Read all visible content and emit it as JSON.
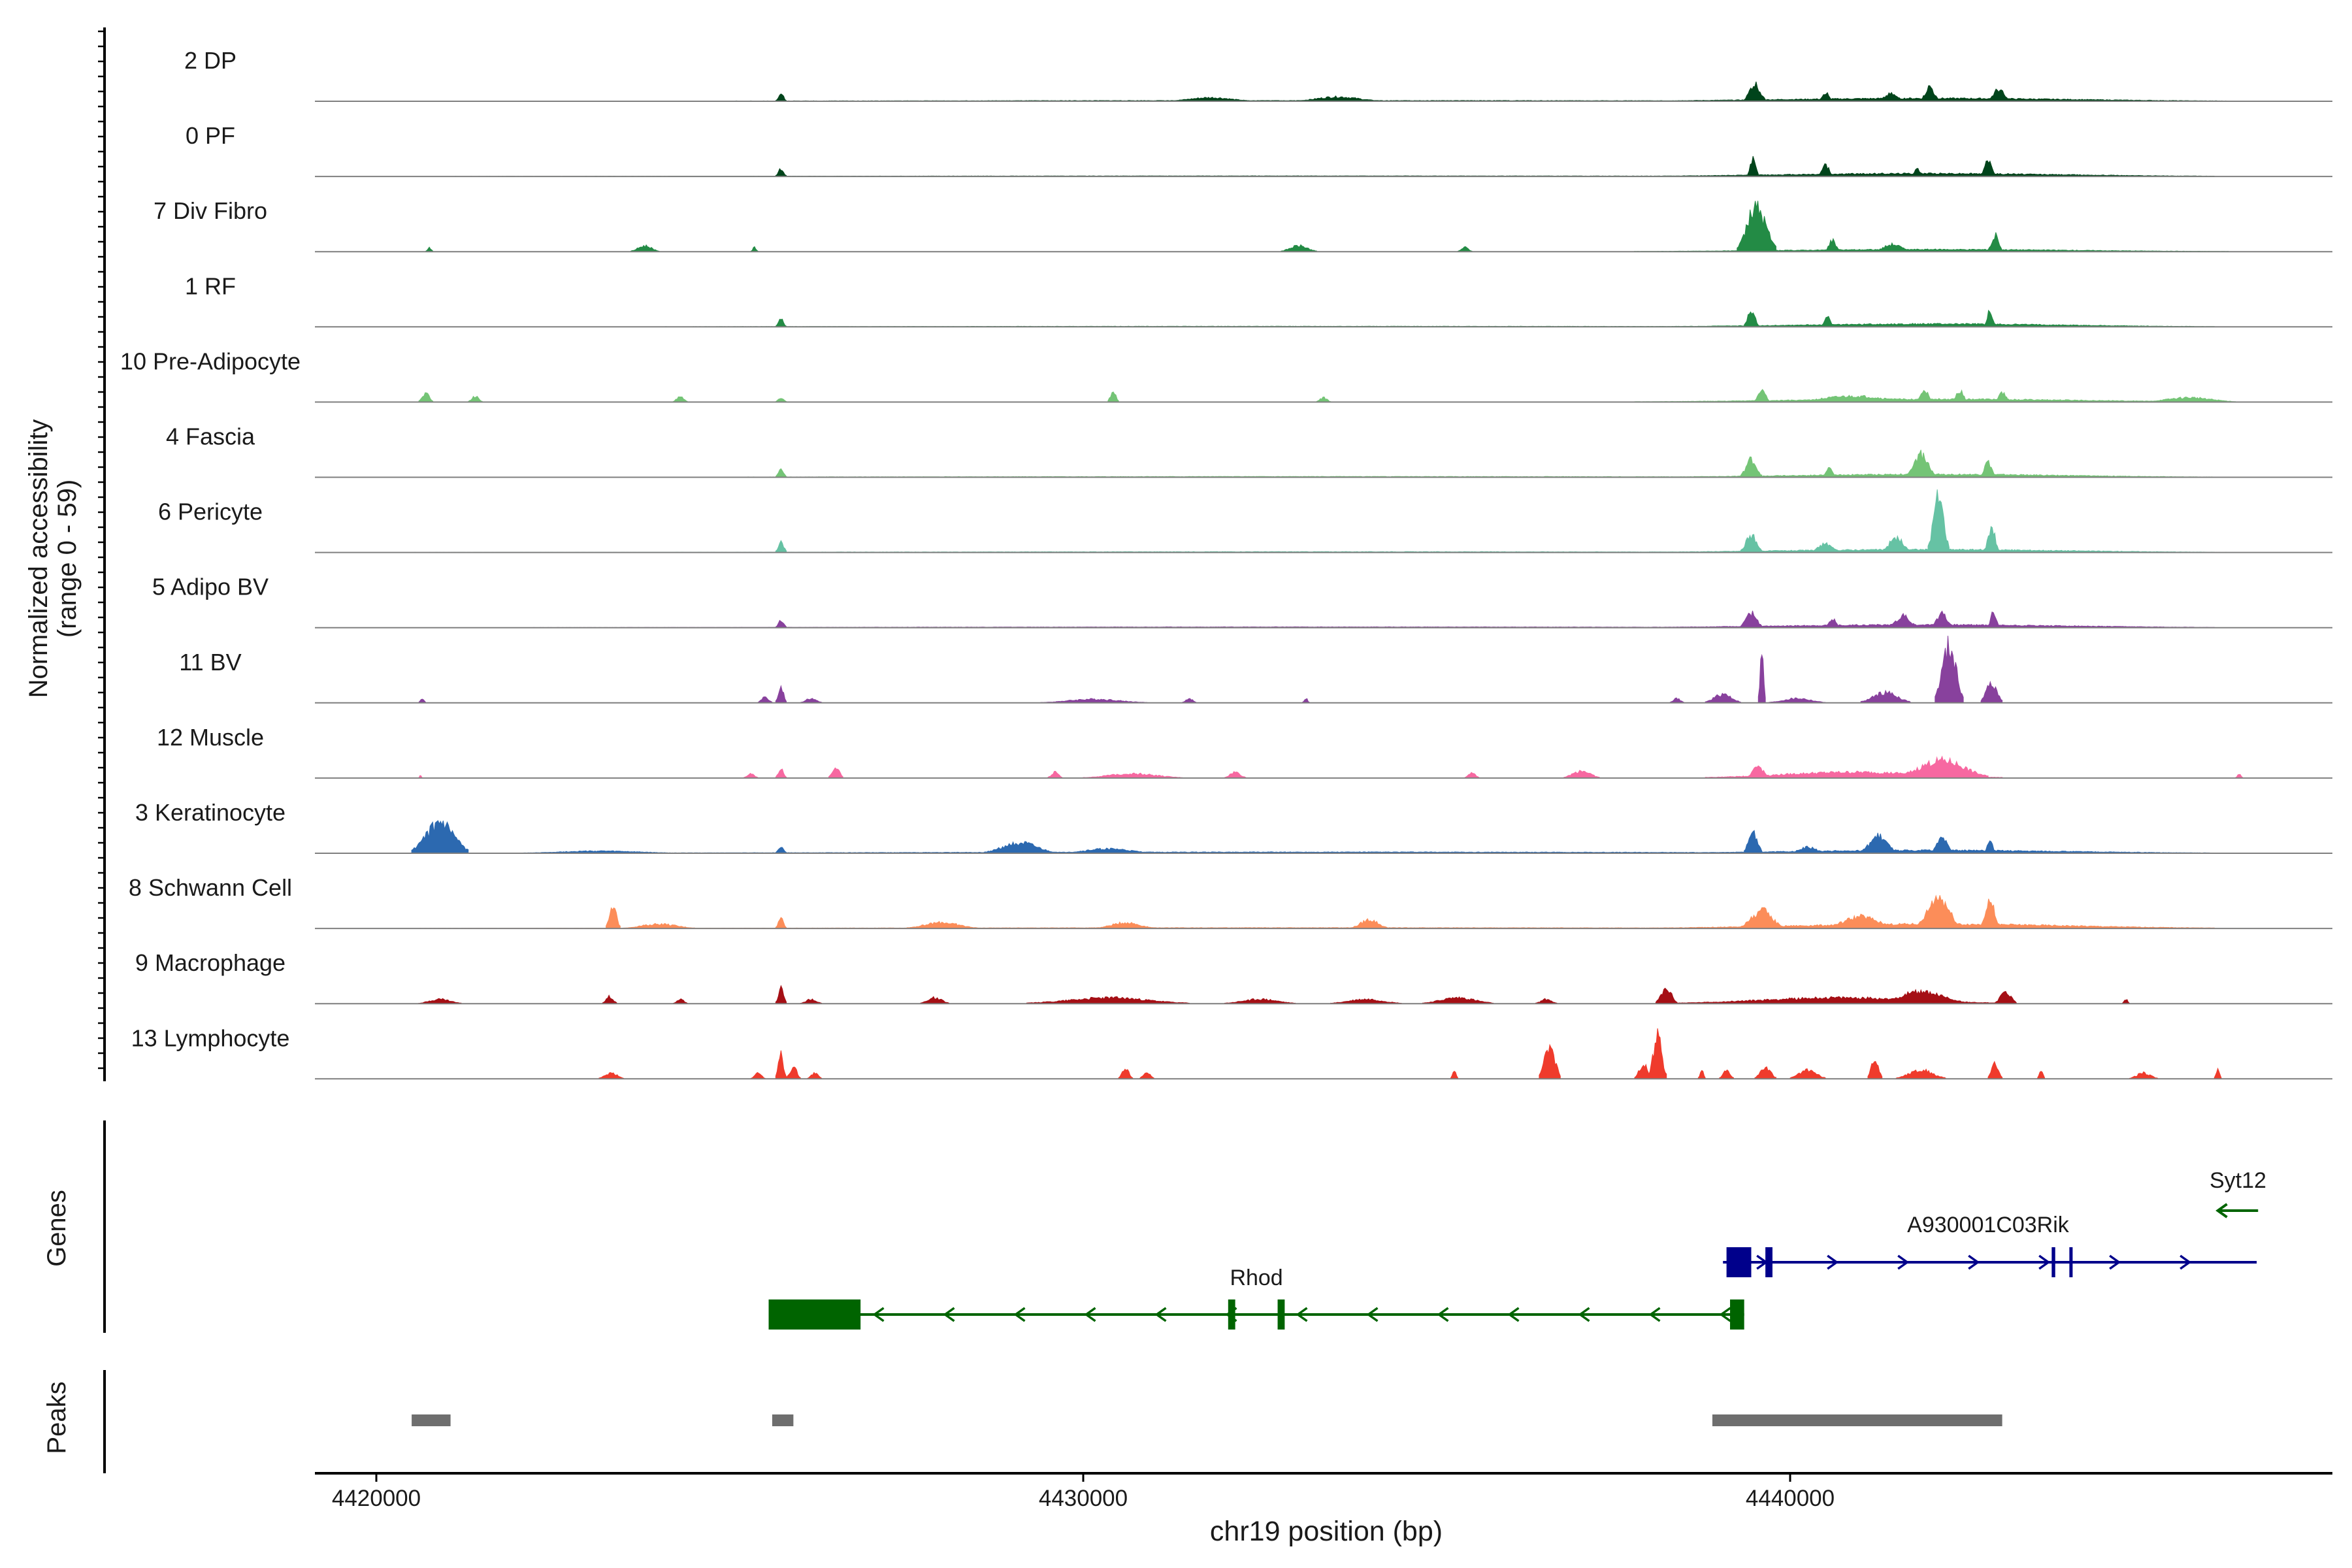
{
  "chart_data": {
    "type": "area",
    "title": "",
    "ylabel_line1": "Normalized accessibility",
    "ylabel_line2": "(range 0 - 59)",
    "xlabel": "chr19 position (bp)",
    "xlim": [
      4419200,
      4447700
    ],
    "ylim": [
      0,
      59
    ],
    "x_ticks": [
      4420000,
      4430000,
      4440000
    ],
    "x_tick_labels": [
      "4420000",
      "4430000",
      "4440000"
    ],
    "tracks": [
      {
        "name": "2 DP",
        "color": "#00441b",
        "peaks": [
          [
            4420400,
            4446200,
            0.5,
            1800
          ],
          [
            4425650,
            4425800,
            5,
            90
          ],
          [
            4431200,
            4432400,
            2.5,
            400
          ],
          [
            4433000,
            4434200,
            3,
            400
          ],
          [
            4437700,
            4446200,
            2,
            600
          ],
          [
            4439350,
            4439650,
            12,
            160
          ],
          [
            4440400,
            4440600,
            6,
            100
          ],
          [
            4441250,
            4441600,
            5,
            300
          ],
          [
            4441850,
            4442100,
            10,
            160
          ],
          [
            4442800,
            4443100,
            8,
            120
          ]
        ]
      },
      {
        "name": "0 PF",
        "color": "#00441b",
        "peaks": [
          [
            4420400,
            4446200,
            0.4,
            1800
          ],
          [
            4425650,
            4425800,
            5,
            90
          ],
          [
            4437800,
            4446000,
            2,
            700
          ],
          [
            4439400,
            4439550,
            13,
            130
          ],
          [
            4440400,
            4440600,
            8,
            100
          ],
          [
            4441700,
            4441900,
            5,
            150
          ],
          [
            4442700,
            4442900,
            12,
            110
          ]
        ]
      },
      {
        "name": "7 Div Fibro",
        "color": "#238b45",
        "peaks": [
          [
            4420700,
            4420800,
            3,
            60
          ],
          [
            4423600,
            4424000,
            4,
            120
          ],
          [
            4425300,
            4425400,
            3,
            60
          ],
          [
            4432800,
            4433300,
            4,
            150
          ],
          [
            4435300,
            4435500,
            3,
            80
          ],
          [
            4437800,
            4446200,
            1.5,
            800
          ],
          [
            4439250,
            4439800,
            30,
            300
          ],
          [
            4440500,
            4440700,
            8,
            120
          ],
          [
            4441200,
            4441700,
            5,
            250
          ],
          [
            4442800,
            4443000,
            11,
            110
          ]
        ]
      },
      {
        "name": "1 RF",
        "color": "#238b45",
        "peaks": [
          [
            4420400,
            4446200,
            0.4,
            1800
          ],
          [
            4425650,
            4425800,
            5,
            90
          ],
          [
            4438000,
            4446000,
            2,
            700
          ],
          [
            4439350,
            4439550,
            12,
            140
          ],
          [
            4440450,
            4440600,
            8,
            90
          ],
          [
            4442750,
            4442900,
            12,
            110
          ]
        ]
      },
      {
        "name": "10 Pre-Adipocyte",
        "color": "#74c476",
        "peaks": [
          [
            4420600,
            4420800,
            6,
            100
          ],
          [
            4421300,
            4421500,
            4,
            100
          ],
          [
            4424200,
            4424400,
            4,
            100
          ],
          [
            4425650,
            4425800,
            3,
            60
          ],
          [
            4430350,
            4430500,
            8,
            100
          ],
          [
            4433300,
            4433500,
            3,
            80
          ],
          [
            4437800,
            4446300,
            2,
            900
          ],
          [
            4439500,
            4439700,
            10,
            130
          ],
          [
            4440000,
            4441800,
            4,
            600
          ],
          [
            4441800,
            4442000,
            9,
            130
          ],
          [
            4442300,
            4442500,
            8,
            130
          ],
          [
            4442900,
            4443100,
            7,
            130
          ],
          [
            4445000,
            4446300,
            3,
            500
          ]
        ]
      },
      {
        "name": "4 Fascia",
        "color": "#74c476",
        "peaks": [
          [
            4420400,
            4446200,
            0.5,
            1800
          ],
          [
            4425650,
            4425800,
            5,
            90
          ],
          [
            4438000,
            4446000,
            2,
            700
          ],
          [
            4439300,
            4439600,
            12,
            180
          ],
          [
            4440450,
            4440650,
            6,
            110
          ],
          [
            4441650,
            4442050,
            16,
            260
          ],
          [
            4442700,
            4442900,
            10,
            120
          ]
        ]
      },
      {
        "name": "6 Pericyte",
        "color": "#66c2a4",
        "peaks": [
          [
            4420400,
            4446200,
            0.5,
            1800
          ],
          [
            4425650,
            4425800,
            8,
            90
          ],
          [
            4437800,
            4446000,
            2,
            700
          ],
          [
            4439300,
            4439600,
            12,
            200
          ],
          [
            4440300,
            4440700,
            6,
            200
          ],
          [
            4441300,
            4441700,
            10,
            250
          ],
          [
            4441950,
            4442250,
            38,
            230
          ],
          [
            4442750,
            4442950,
            18,
            130
          ]
        ]
      },
      {
        "name": "5 Adipo BV",
        "color": "#88419d",
        "peaks": [
          [
            4420400,
            4446200,
            0.5,
            1800
          ],
          [
            4425650,
            4425800,
            5,
            90
          ],
          [
            4437800,
            4446000,
            2,
            700
          ],
          [
            4439300,
            4439600,
            10,
            180
          ],
          [
            4440500,
            4440700,
            6,
            110
          ],
          [
            4441400,
            4441800,
            8,
            250
          ],
          [
            4442000,
            4442300,
            10,
            200
          ],
          [
            4442800,
            4442950,
            12,
            110
          ]
        ]
      },
      {
        "name": "11 BV",
        "color": "#88419d",
        "peaks": [
          [
            4420600,
            4420700,
            3,
            50
          ],
          [
            4425400,
            4425600,
            4,
            100
          ],
          [
            4425650,
            4425800,
            10,
            90
          ],
          [
            4426000,
            4426300,
            3,
            120
          ],
          [
            4429400,
            4430900,
            2.5,
            400
          ],
          [
            4431400,
            4431600,
            3,
            80
          ],
          [
            4433100,
            4433200,
            3,
            60
          ],
          [
            4438300,
            4438500,
            3,
            90
          ],
          [
            4438800,
            4439300,
            6,
            250
          ],
          [
            4439550,
            4439650,
            33,
            60
          ],
          [
            4439700,
            4440500,
            3,
            250
          ],
          [
            4441000,
            4441700,
            7,
            250
          ],
          [
            4442050,
            4442450,
            38,
            200
          ],
          [
            4442700,
            4443000,
            14,
            130
          ]
        ]
      },
      {
        "name": "12 Muscle",
        "color": "#f768a1",
        "peaks": [
          [
            4420600,
            4420650,
            2,
            30
          ],
          [
            4425200,
            4425400,
            3,
            80
          ],
          [
            4425650,
            4425800,
            7,
            80
          ],
          [
            4426400,
            4426600,
            8,
            80
          ],
          [
            4429500,
            4429700,
            4,
            80
          ],
          [
            4430000,
            4431400,
            3,
            400
          ],
          [
            4432000,
            4432300,
            4,
            120
          ],
          [
            4435400,
            4435600,
            4,
            80
          ],
          [
            4436800,
            4437300,
            5,
            150
          ],
          [
            4438800,
            4443000,
            4,
            900
          ],
          [
            4439400,
            4439700,
            8,
            130
          ],
          [
            4441500,
            4442800,
            12,
            400
          ],
          [
            4446300,
            4446400,
            3,
            40
          ]
        ]
      },
      {
        "name": "3 Keratinocyte",
        "color": "#2c69b0",
        "peaks": [
          [
            4420500,
            4421300,
            20,
            250
          ],
          [
            4420400,
            4446200,
            0.8,
            1800
          ],
          [
            4422000,
            4424300,
            1.5,
            500
          ],
          [
            4425650,
            4425800,
            5,
            90
          ],
          [
            4428600,
            4429600,
            7,
            300
          ],
          [
            4429700,
            4431000,
            3,
            400
          ],
          [
            4438000,
            4446000,
            2,
            700
          ],
          [
            4439350,
            4439600,
            15,
            160
          ],
          [
            4440000,
            4440500,
            4,
            200
          ],
          [
            4441000,
            4441500,
            12,
            300
          ],
          [
            4442000,
            4442300,
            10,
            180
          ],
          [
            4442750,
            4442900,
            9,
            110
          ]
        ]
      },
      {
        "name": "8 Schwann Cell",
        "color": "#fc8d59",
        "peaks": [
          [
            4420400,
            4446200,
            0.5,
            1800
          ],
          [
            4423250,
            4423450,
            14,
            110
          ],
          [
            4423500,
            4424500,
            3,
            300
          ],
          [
            4425650,
            4425800,
            7,
            100
          ],
          [
            4427500,
            4428500,
            4,
            250
          ],
          [
            4430200,
            4431000,
            4,
            250
          ],
          [
            4433800,
            4434300,
            6,
            150
          ],
          [
            4438000,
            4446000,
            3,
            800
          ],
          [
            4439300,
            4439900,
            12,
            250
          ],
          [
            4440500,
            4441500,
            8,
            250
          ],
          [
            4441800,
            4442400,
            22,
            250
          ],
          [
            4442700,
            4442950,
            20,
            140
          ]
        ]
      },
      {
        "name": "9 Macrophage",
        "color": "#a50f15",
        "peaks": [
          [
            4420600,
            4421200,
            3,
            150
          ],
          [
            4423200,
            4423400,
            5,
            100
          ],
          [
            4424200,
            4424400,
            3,
            80
          ],
          [
            4425650,
            4425800,
            10,
            100
          ],
          [
            4426000,
            4426300,
            3,
            100
          ],
          [
            4427700,
            4428100,
            4,
            120
          ],
          [
            4429200,
            4431500,
            4,
            600
          ],
          [
            4432000,
            4433000,
            3,
            300
          ],
          [
            4433500,
            4434500,
            3,
            300
          ],
          [
            4434800,
            4435800,
            4,
            300
          ],
          [
            4436400,
            4436700,
            3,
            100
          ],
          [
            4438100,
            4438400,
            10,
            120
          ],
          [
            4438400,
            4443000,
            4,
            1000
          ],
          [
            4441200,
            4442500,
            8,
            400
          ],
          [
            4442900,
            4443200,
            8,
            120
          ],
          [
            4444700,
            4444800,
            3,
            60
          ]
        ]
      },
      {
        "name": "13 Lymphocyte",
        "color": "#ef3b2c",
        "peaks": [
          [
            4423150,
            4423500,
            4,
            120
          ],
          [
            4425300,
            4425500,
            4,
            80
          ],
          [
            4425650,
            4425800,
            16,
            90
          ],
          [
            4425800,
            4426000,
            8,
            90
          ],
          [
            4426100,
            4426300,
            4,
            80
          ],
          [
            4430500,
            4430700,
            7,
            90
          ],
          [
            4430800,
            4431000,
            5,
            90
          ],
          [
            4435200,
            4435300,
            5,
            60
          ],
          [
            4436450,
            4436750,
            22,
            160
          ],
          [
            4438000,
            4438250,
            28,
            130
          ],
          [
            4437800,
            4438050,
            10,
            120
          ],
          [
            4438700,
            4438800,
            6,
            60
          ],
          [
            4439000,
            4439200,
            6,
            80
          ],
          [
            4439500,
            4439800,
            8,
            120
          ],
          [
            4440000,
            4440500,
            6,
            200
          ],
          [
            4441100,
            4441300,
            14,
            130
          ],
          [
            4441500,
            4442200,
            6,
            300
          ],
          [
            4442800,
            4443000,
            10,
            120
          ],
          [
            4443500,
            4443600,
            6,
            60
          ],
          [
            4444800,
            4445200,
            4,
            120
          ],
          [
            4446000,
            4446100,
            6,
            60
          ]
        ]
      }
    ],
    "genes_label": "Genes",
    "genes": [
      {
        "name": "Rhod",
        "strand": "-",
        "color": "#006400",
        "start": 4425550,
        "end": 4439350,
        "row": 2,
        "exons": [
          [
            4425550,
            4426850
          ],
          [
            4432050,
            4432150
          ],
          [
            4432750,
            4432850
          ],
          [
            4439150,
            4439350
          ]
        ]
      },
      {
        "name": "A930001C03Rik",
        "strand": "+",
        "color": "#00008b",
        "start": 4439050,
        "end": 4446600,
        "row": 1,
        "exons": [
          [
            4439100,
            4439450
          ],
          [
            4439650,
            4439750
          ],
          [
            4443700,
            4443750
          ],
          [
            4443950,
            4443980
          ]
        ]
      },
      {
        "name": "Syt12",
        "strand": "-",
        "color": "#006400",
        "start": 4446000,
        "end": 4446600,
        "row": 0,
        "exons": []
      }
    ],
    "peaks_label": "Peaks",
    "peak_regions": [
      [
        4420500,
        4421050
      ],
      [
        4425600,
        4425900
      ],
      [
        4438900,
        4443000
      ]
    ],
    "peak_color": "#6e6e6e"
  }
}
